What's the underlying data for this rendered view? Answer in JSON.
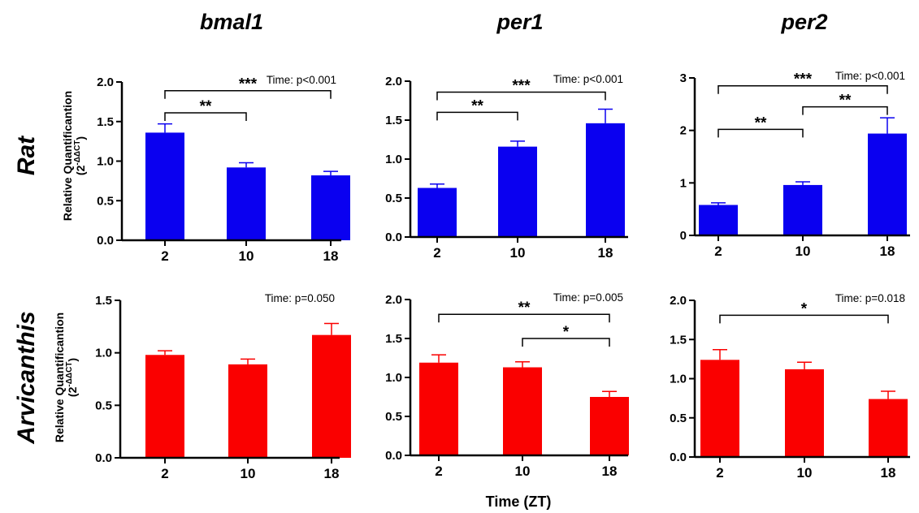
{
  "column_titles": [
    "bmal1",
    "per1",
    "per2"
  ],
  "row_titles": [
    "Rat",
    "Arvicanthis"
  ],
  "ylabel_line1": "Relative Quantificantion",
  "ylabel_line2": "(2",
  "ylabel_sup": "-ΔΔCT",
  "ylabel_close": ")",
  "xlabel": "Time (ZT)",
  "colors": {
    "rat": "#0a00f0",
    "arvicanthis": "#fa0000"
  },
  "chart_data": [
    {
      "type": "bar",
      "species": "Rat",
      "gene": "bmal1",
      "categories": [
        "2",
        "10",
        "18"
      ],
      "values": [
        1.36,
        0.92,
        0.82
      ],
      "errors": [
        0.11,
        0.06,
        0.05
      ],
      "ylim": [
        0,
        2.0
      ],
      "yticks": [
        "0.0",
        "0.5",
        "1.0",
        "1.5",
        "2.0"
      ],
      "p_label": "Time: p<0.001",
      "brackets": [
        {
          "from": 0,
          "to": 2,
          "y": 1.89,
          "stars": "***"
        },
        {
          "from": 0,
          "to": 1,
          "y": 1.61,
          "stars": "**"
        }
      ]
    },
    {
      "type": "bar",
      "species": "Rat",
      "gene": "per1",
      "categories": [
        "2",
        "10",
        "18"
      ],
      "values": [
        0.63,
        1.16,
        1.46
      ],
      "errors": [
        0.05,
        0.07,
        0.18
      ],
      "ylim": [
        0,
        2.0
      ],
      "yticks": [
        "0.0",
        "0.5",
        "1.0",
        "1.5",
        "2.0"
      ],
      "p_label": "Time: p<0.001",
      "brackets": [
        {
          "from": 0,
          "to": 2,
          "y": 1.86,
          "stars": "***"
        },
        {
          "from": 0,
          "to": 1,
          "y": 1.6,
          "stars": "**"
        }
      ]
    },
    {
      "type": "bar",
      "species": "Rat",
      "gene": "per2",
      "categories": [
        "2",
        "10",
        "18"
      ],
      "values": [
        0.58,
        0.96,
        1.94
      ],
      "errors": [
        0.04,
        0.06,
        0.3
      ],
      "ylim": [
        0,
        3
      ],
      "yticks": [
        "0",
        "1",
        "2",
        "3"
      ],
      "p_label": "Time: p<0.001",
      "brackets": [
        {
          "from": 0,
          "to": 2,
          "y": 2.85,
          "stars": "***"
        },
        {
          "from": 1,
          "to": 2,
          "y": 2.45,
          "stars": "**"
        },
        {
          "from": 0,
          "to": 1,
          "y": 2.02,
          "stars": "**"
        }
      ]
    },
    {
      "type": "bar",
      "species": "Arvicanthis",
      "gene": "bmal1",
      "categories": [
        "2",
        "10",
        "18"
      ],
      "values": [
        0.98,
        0.89,
        1.17
      ],
      "errors": [
        0.04,
        0.05,
        0.11
      ],
      "ylim": [
        0,
        1.5
      ],
      "yticks": [
        "0.0",
        "0.5",
        "1.0",
        "1.5"
      ],
      "p_label": "Time: p=0.050",
      "brackets": []
    },
    {
      "type": "bar",
      "species": "Arvicanthis",
      "gene": "per1",
      "categories": [
        "2",
        "10",
        "18"
      ],
      "values": [
        1.19,
        1.13,
        0.75
      ],
      "errors": [
        0.1,
        0.07,
        0.07
      ],
      "ylim": [
        0,
        2.0
      ],
      "yticks": [
        "0.0",
        "0.5",
        "1.0",
        "1.5",
        "2.0"
      ],
      "p_label": "Time: p=0.005",
      "brackets": [
        {
          "from": 0,
          "to": 2,
          "y": 1.81,
          "stars": "**"
        },
        {
          "from": 1,
          "to": 2,
          "y": 1.5,
          "stars": "*"
        }
      ]
    },
    {
      "type": "bar",
      "species": "Arvicanthis",
      "gene": "per2",
      "categories": [
        "2",
        "10",
        "18"
      ],
      "values": [
        1.24,
        1.12,
        0.74
      ],
      "errors": [
        0.13,
        0.09,
        0.1
      ],
      "ylim": [
        0,
        2.0
      ],
      "yticks": [
        "0.0",
        "0.5",
        "1.0",
        "1.5",
        "2.0"
      ],
      "p_label": "Time: p=0.018",
      "brackets": [
        {
          "from": 0,
          "to": 2,
          "y": 1.81,
          "stars": "*"
        }
      ]
    }
  ]
}
